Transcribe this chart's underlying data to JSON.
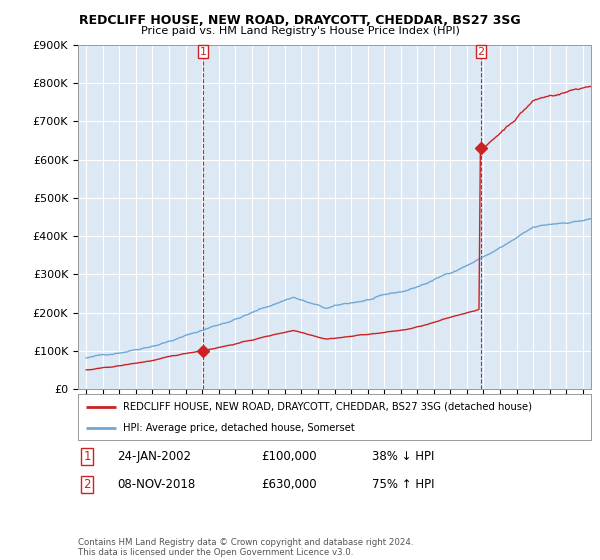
{
  "title": "REDCLIFF HOUSE, NEW ROAD, DRAYCOTT, CHEDDAR, BS27 3SG",
  "subtitle": "Price paid vs. HM Land Registry's House Price Index (HPI)",
  "ylabel_values": [
    "£0",
    "£100K",
    "£200K",
    "£300K",
    "£400K",
    "£500K",
    "£600K",
    "£700K",
    "£800K",
    "£900K"
  ],
  "ylim": [
    0,
    900000
  ],
  "sale1_year": 2002.07,
  "sale1_price": 100000,
  "sale1_label": "1",
  "sale2_year": 2018.85,
  "sale2_price": 630000,
  "sale2_label": "2",
  "hpi_color": "#6fa8d6",
  "price_color": "#cc2222",
  "chart_bg": "#dce9f5",
  "legend_house": "REDCLIFF HOUSE, NEW ROAD, DRAYCOTT, CHEDDAR, BS27 3SG (detached house)",
  "legend_hpi": "HPI: Average price, detached house, Somerset",
  "table_row1": [
    "1",
    "24-JAN-2002",
    "£100,000",
    "38% ↓ HPI"
  ],
  "table_row2": [
    "2",
    "08-NOV-2018",
    "£630,000",
    "75% ↑ HPI"
  ],
  "footnote": "Contains HM Land Registry data © Crown copyright and database right 2024.\nThis data is licensed under the Open Government Licence v3.0.",
  "xmin": 1994.5,
  "xmax": 2025.5,
  "background_color": "#ffffff"
}
